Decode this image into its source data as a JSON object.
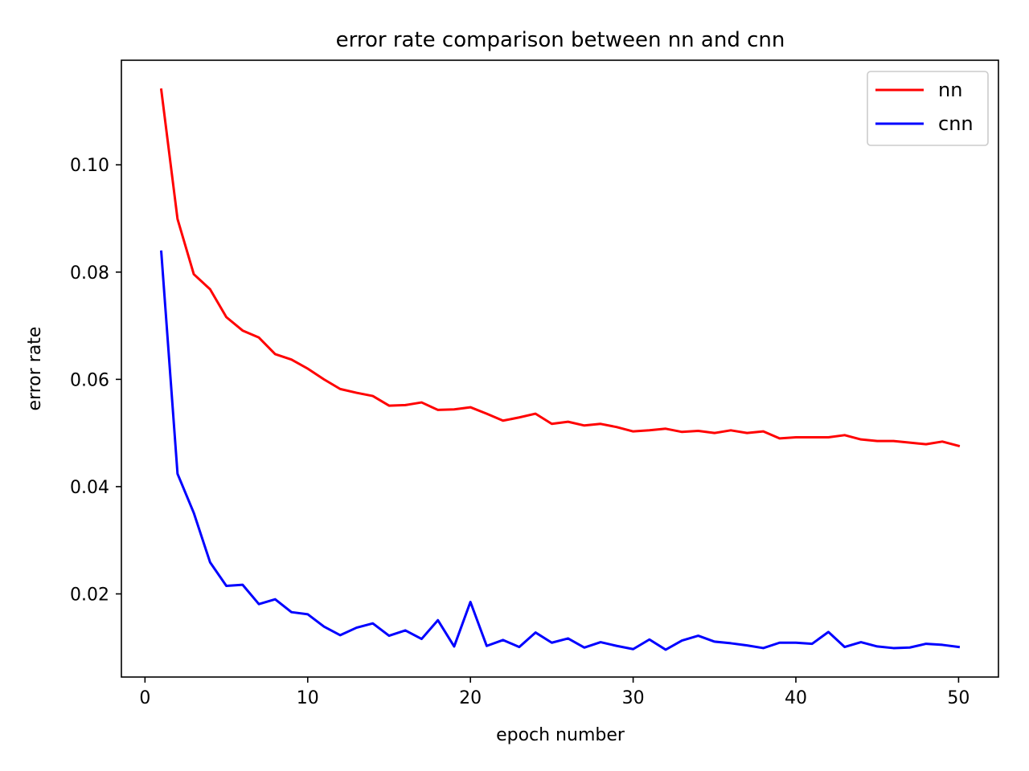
{
  "chart_data": {
    "type": "line",
    "title": "error rate comparison between nn and cnn",
    "xlabel": "epoch number",
    "ylabel": "error rate",
    "xlim": [
      -1.45,
      52.45
    ],
    "ylim": [
      0.0045,
      0.1195
    ],
    "xticks": [
      0,
      10,
      20,
      30,
      40,
      50
    ],
    "yticks": [
      0.02,
      0.04,
      0.06,
      0.08,
      0.1
    ],
    "xtick_labels": [
      "0",
      "10",
      "20",
      "30",
      "40",
      "50"
    ],
    "ytick_labels": [
      "0.02",
      "0.04",
      "0.06",
      "0.08",
      "0.10"
    ],
    "grid": false,
    "legend_position": "top-right",
    "x": [
      1,
      2,
      3,
      4,
      5,
      6,
      7,
      8,
      9,
      10,
      11,
      12,
      13,
      14,
      15,
      16,
      17,
      18,
      19,
      20,
      21,
      22,
      23,
      24,
      25,
      26,
      27,
      28,
      29,
      30,
      31,
      32,
      33,
      34,
      35,
      36,
      37,
      38,
      39,
      40,
      41,
      42,
      43,
      44,
      45,
      46,
      47,
      48,
      49,
      50
    ],
    "series": [
      {
        "name": "nn",
        "color": "#ff0000",
        "values": [
          0.114,
          0.0899,
          0.0796,
          0.0768,
          0.0716,
          0.0691,
          0.0678,
          0.0647,
          0.0637,
          0.062,
          0.06,
          0.0582,
          0.0575,
          0.0569,
          0.0551,
          0.0552,
          0.0557,
          0.0543,
          0.0544,
          0.0548,
          0.0536,
          0.0523,
          0.0529,
          0.0536,
          0.0517,
          0.0521,
          0.0514,
          0.0517,
          0.0511,
          0.0503,
          0.0505,
          0.0508,
          0.0502,
          0.0504,
          0.05,
          0.0505,
          0.05,
          0.0503,
          0.049,
          0.0492,
          0.0492,
          0.0492,
          0.0496,
          0.0488,
          0.0485,
          0.0485,
          0.0482,
          0.0479,
          0.0484,
          0.0476
        ]
      },
      {
        "name": "cnn",
        "color": "#0000ff",
        "values": [
          0.0838,
          0.0424,
          0.0351,
          0.0259,
          0.0215,
          0.0217,
          0.0181,
          0.019,
          0.0166,
          0.0162,
          0.0139,
          0.0123,
          0.0137,
          0.0145,
          0.0122,
          0.0132,
          0.0116,
          0.0151,
          0.0102,
          0.0185,
          0.0103,
          0.0114,
          0.0101,
          0.0128,
          0.0109,
          0.0117,
          0.01,
          0.011,
          0.0103,
          0.0097,
          0.0115,
          0.0096,
          0.0113,
          0.0122,
          0.0111,
          0.0108,
          0.0104,
          0.0099,
          0.0109,
          0.0109,
          0.0107,
          0.0129,
          0.0101,
          0.011,
          0.0102,
          0.0099,
          0.01,
          0.0107,
          0.0105,
          0.0101
        ]
      }
    ]
  }
}
